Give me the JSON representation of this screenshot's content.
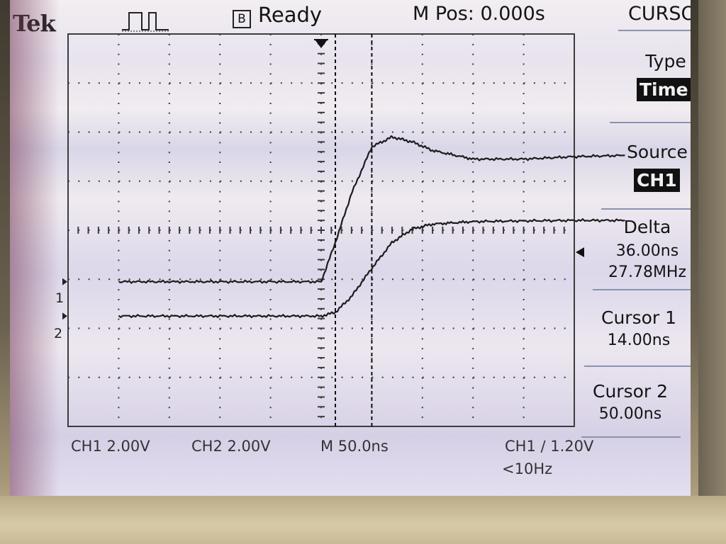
{
  "header": {
    "brand": "Tek",
    "acq_state_icon": "B",
    "acq_state": "Ready",
    "main_position": "M Pos: 0.000s",
    "menu_title": "CURSOR"
  },
  "menu": {
    "type_label": "Type",
    "type_value": "Time",
    "source_label": "Source",
    "source_value": "CH1",
    "delta_label": "Delta",
    "delta_time": "36.00ns",
    "delta_freq": "27.78MHz",
    "cursor1_label": "Cursor 1",
    "cursor1_value": "14.00ns",
    "cursor2_label": "Cursor 2",
    "cursor2_value": "50.00ns"
  },
  "status": {
    "ch1_scale": "CH1  2.00V",
    "ch2_scale": "CH2  2.00V",
    "timebase": "M 50.0ns",
    "trigger": "CH1 ∕ 1.20V",
    "trigger_freq": "<10Hz"
  },
  "channels": {
    "ch1_marker": "1",
    "ch2_marker": "2"
  },
  "icons": {
    "trigger_type": "pulse-trigger-icon",
    "trigger_position": "trigger-position-arrow-icon",
    "trigger_level": "trigger-level-arrow-icon"
  },
  "colors": {
    "trace": "#1c1c1c",
    "grid": "#3c3c3c",
    "menu_highlight": "#111111"
  },
  "chart_data": {
    "type": "line",
    "x": [
      -200,
      -150,
      -100,
      -50,
      0,
      14,
      30,
      50,
      70,
      90,
      110,
      150,
      200,
      250,
      300
    ],
    "series": [
      {
        "values": [
          0.0,
          0.0,
          0.0,
          0.0,
          0.0,
          1.6,
          3.6,
          5.5,
          5.9,
          5.7,
          5.35,
          5.0,
          5.0,
          5.1,
          5.15
        ]
      },
      {
        "values": [
          0.0,
          0.0,
          0.0,
          0.0,
          0.0,
          0.15,
          0.8,
          1.95,
          3.0,
          3.55,
          3.75,
          3.85,
          3.88,
          3.9,
          3.9
        ]
      }
    ]
  }
}
